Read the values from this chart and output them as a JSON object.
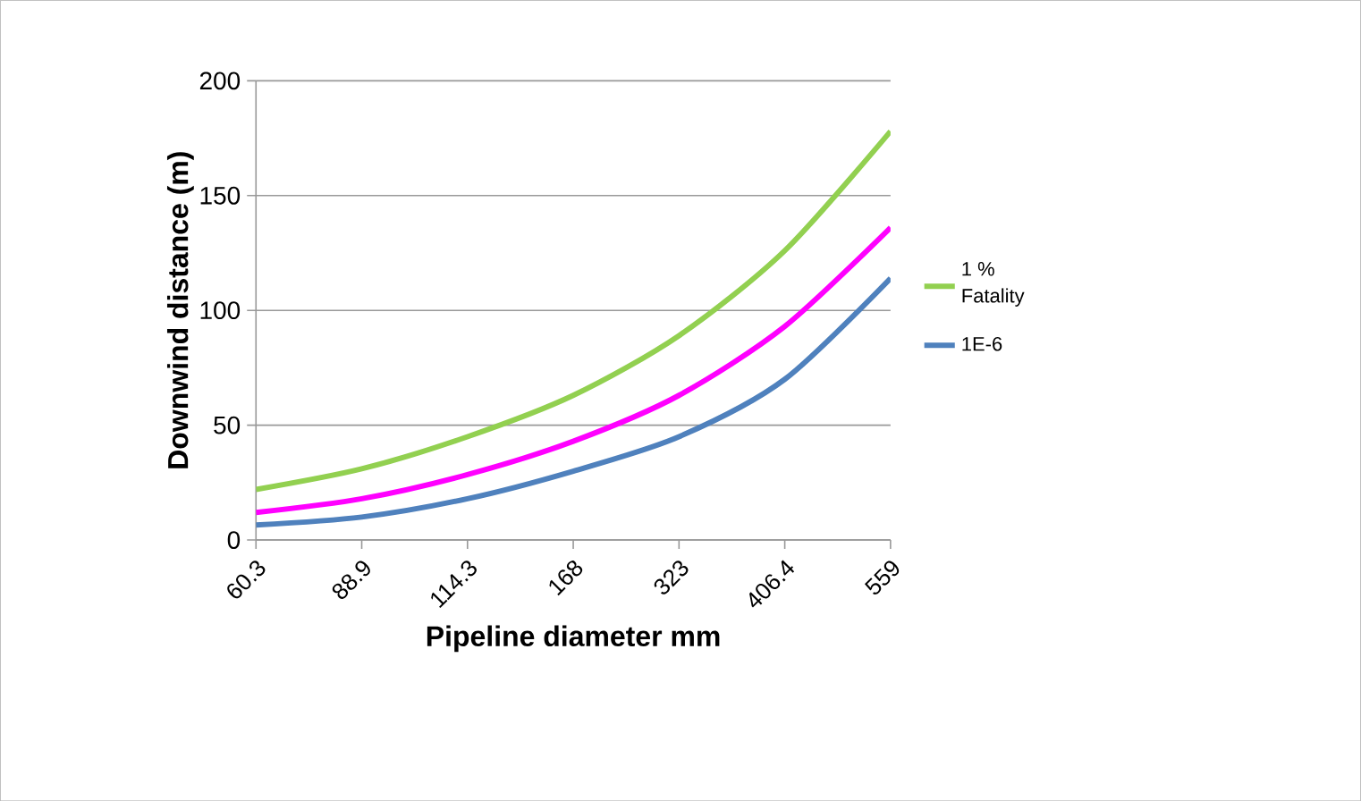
{
  "chart_data": {
    "type": "line",
    "xlabel": "Pipeline diameter mm",
    "ylabel": "Downwind distance (m)",
    "categories": [
      "60.3",
      "88.9",
      "114.3",
      "168",
      "323",
      "406.4",
      "559"
    ],
    "series": [
      {
        "name": "1 % Fatality",
        "color": "#92d050",
        "values": [
          22,
          31,
          45,
          63,
          89,
          126,
          178
        ]
      },
      {
        "color": "#ff00ff",
        "values": [
          12,
          18,
          28.5,
          43,
          63,
          93,
          136
        ]
      },
      {
        "name": "1E-6",
        "color": "#4f81bd",
        "values": [
          6.5,
          10,
          18,
          30,
          45,
          70,
          114
        ]
      }
    ],
    "ylim": [
      0,
      200
    ],
    "yticks": [
      0,
      50,
      100,
      150,
      200
    ],
    "grid": "y",
    "legend": "right",
    "marker": "none",
    "line_style": "solid"
  }
}
